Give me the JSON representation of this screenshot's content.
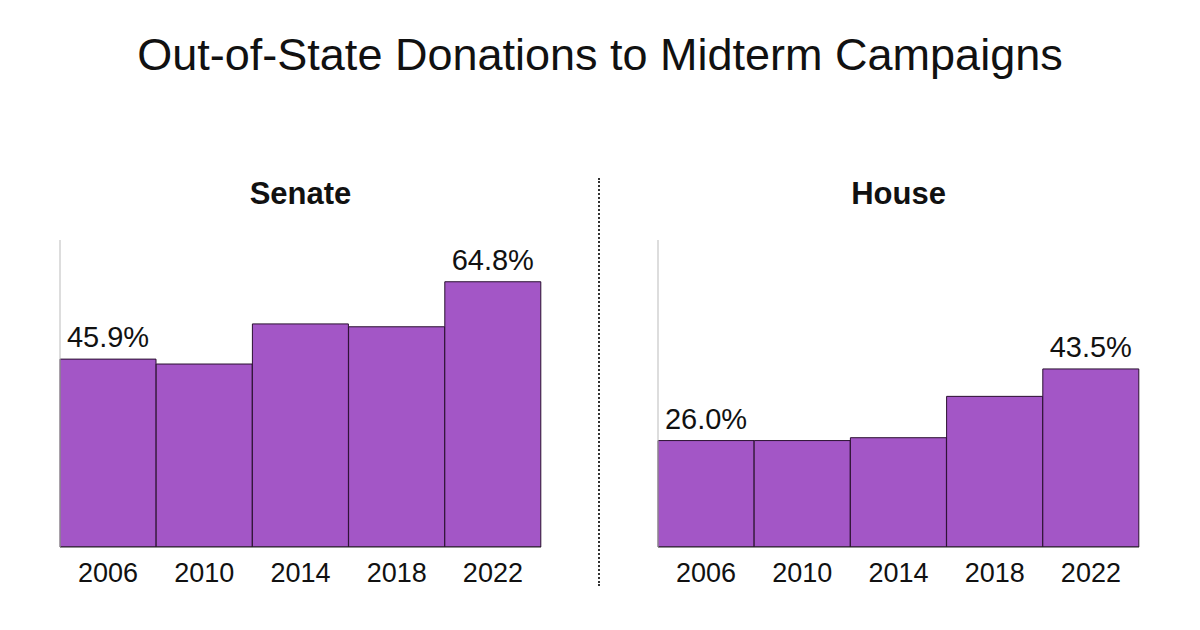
{
  "title": "Out-of-State Donations to Midterm Campaigns",
  "chart_data": [
    {
      "type": "bar",
      "title": "Senate",
      "categories": [
        "2006",
        "2010",
        "2014",
        "2018",
        "2022"
      ],
      "values": [
        45.9,
        44.7,
        54.5,
        53.8,
        64.8
      ],
      "value_labels": [
        "45.9%",
        null,
        null,
        null,
        "64.8%"
      ],
      "color": "#a356c6",
      "ylim": [
        0,
        75
      ],
      "grid": false,
      "data_labels": true,
      "tick_labels": "x"
    },
    {
      "type": "bar",
      "title": "House",
      "categories": [
        "2006",
        "2010",
        "2014",
        "2018",
        "2022"
      ],
      "values": [
        26.0,
        26.0,
        26.7,
        36.8,
        43.5
      ],
      "value_labels": [
        "26.0%",
        null,
        null,
        null,
        "43.5%"
      ],
      "color": "#a356c6",
      "ylim": [
        0,
        75
      ],
      "grid": false,
      "data_labels": true,
      "tick_labels": "x"
    }
  ]
}
